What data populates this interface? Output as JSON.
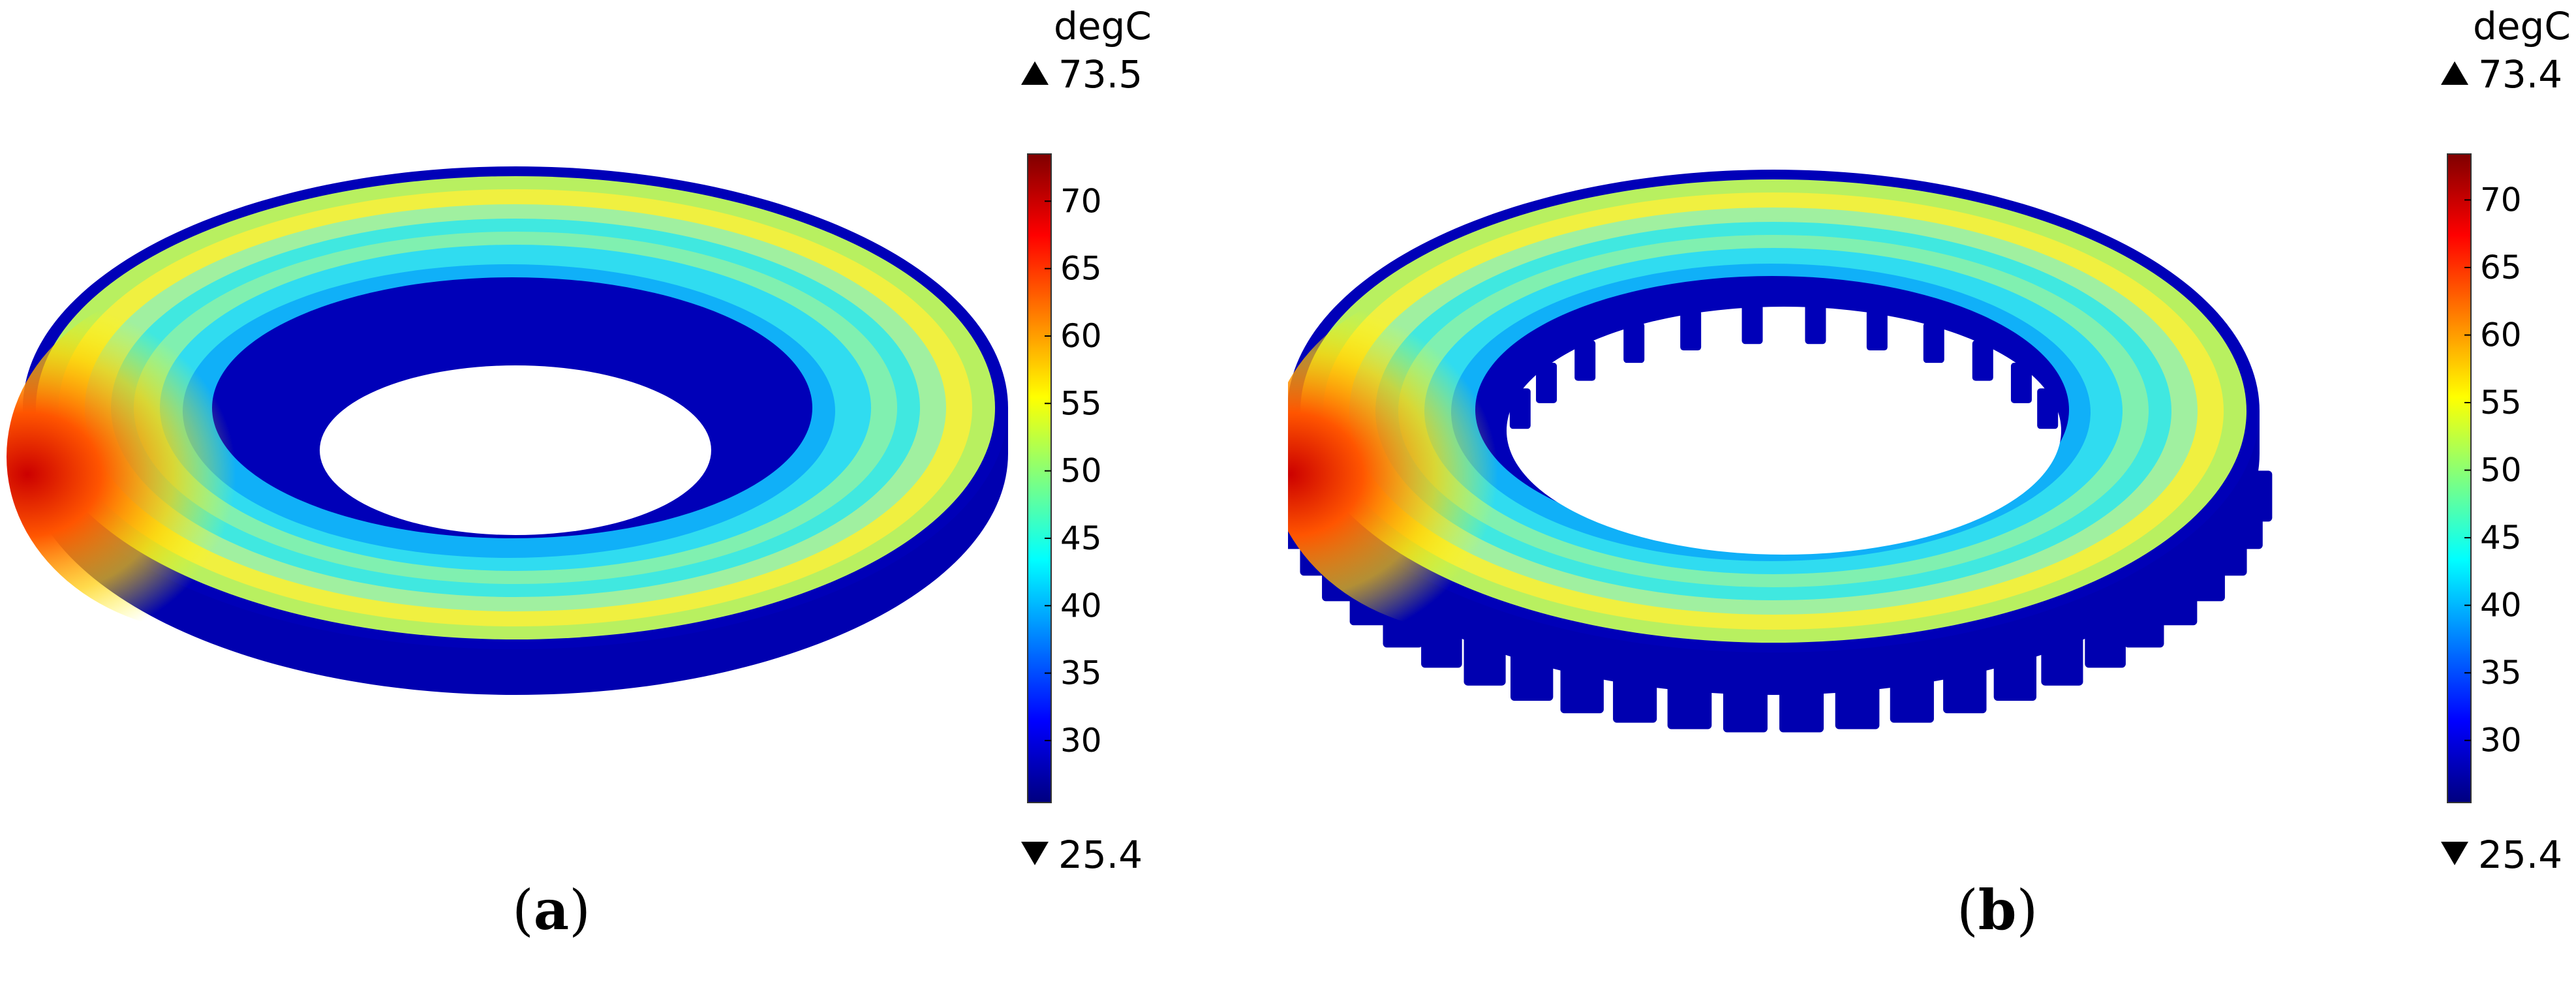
{
  "panels": [
    {
      "id": "a",
      "caption_open": "(",
      "caption_letter": "a",
      "caption_close": ")",
      "colorbar": {
        "unit": "degC",
        "max_label": "73.5",
        "min_label": "25.4",
        "ticks": [
          "70",
          "65",
          "60",
          "55",
          "50",
          "45",
          "40",
          "35",
          "30"
        ]
      }
    },
    {
      "id": "b",
      "caption_open": "(",
      "caption_letter": "b",
      "caption_close": ")",
      "colorbar": {
        "unit": "degC",
        "max_label": "73.4",
        "min_label": "25.4",
        "ticks": [
          "70",
          "65",
          "60",
          "55",
          "50",
          "45",
          "40",
          "35",
          "30"
        ]
      }
    }
  ],
  "colormap": [
    "#00007f",
    "#0000ff",
    "#007fff",
    "#00ffff",
    "#7fff7f",
    "#ffff00",
    "#ff7f00",
    "#ff0000",
    "#7f0000"
  ]
}
